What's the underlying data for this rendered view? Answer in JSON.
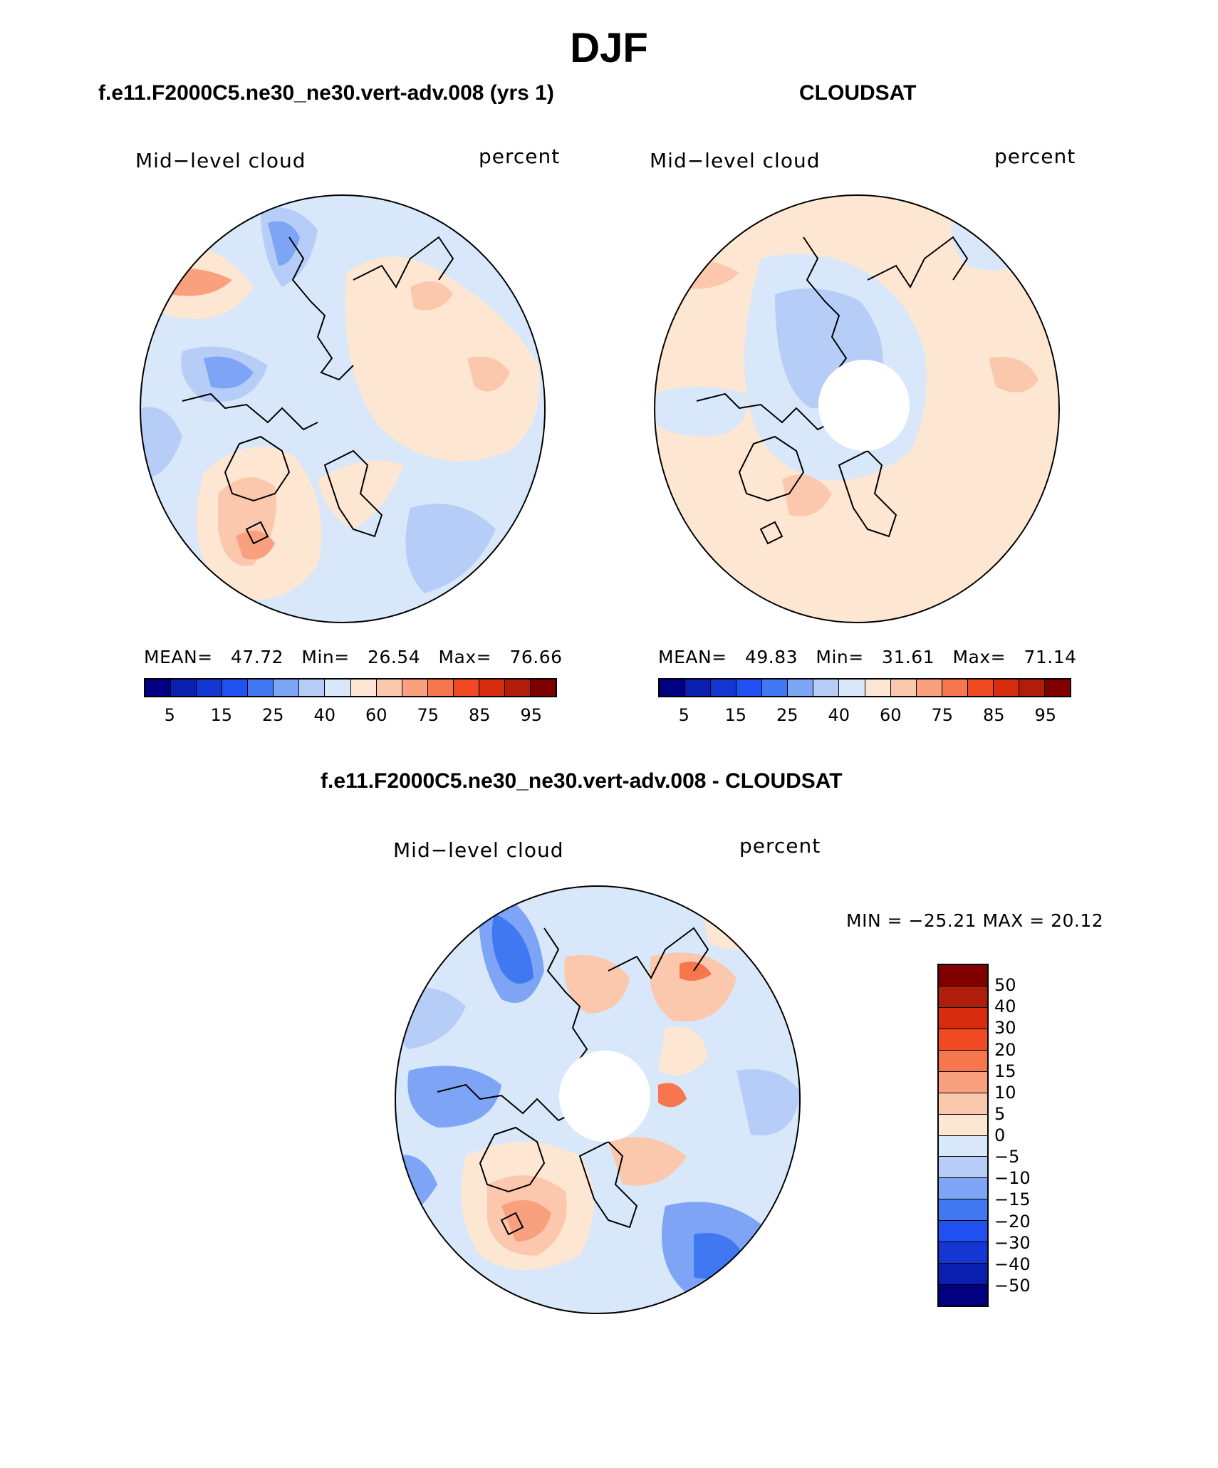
{
  "figure": {
    "title": "DJF"
  },
  "panels": [
    {
      "id": "model",
      "title": "f.e11.F2000C5.ne30_ne30.vert-adv.008 (yrs 1)",
      "left_label": "Mid−level cloud",
      "right_label": "percent",
      "stats": {
        "mean_label": "MEAN=",
        "mean": "47.72",
        "min_label": "Min=",
        "min": "26.54",
        "max_label": "Max=",
        "max": "76.66"
      },
      "has_polar_hole": false
    },
    {
      "id": "obs",
      "title": "CLOUDSAT",
      "left_label": "Mid−level cloud",
      "right_label": "percent",
      "stats": {
        "mean_label": "MEAN=",
        "mean": "49.83",
        "min_label": "Min=",
        "min": "31.61",
        "max_label": "Max=",
        "max": "71.14"
      },
      "has_polar_hole": true
    },
    {
      "id": "diff",
      "title": "f.e11.F2000C5.ne30_ne30.vert-adv.008 - CLOUDSAT",
      "left_label": "Mid−level cloud",
      "right_label": "percent",
      "minmax_text": "MIN = −25.21 MAX =  20.12",
      "has_polar_hole": true
    }
  ],
  "colorbars": {
    "abs": {
      "colors": [
        "#000080",
        "#0a1eb0",
        "#1437d2",
        "#2050f0",
        "#3f78f0",
        "#7ea5f5",
        "#b6cdf8",
        "#d8e8fa",
        "#fde6d2",
        "#fcc8ad",
        "#f9a07e",
        "#f6764d",
        "#f04a22",
        "#d82c0e",
        "#b01d08",
        "#800000"
      ],
      "tick_labels": [
        "5",
        "15",
        "25",
        "40",
        "60",
        "75",
        "85",
        "95"
      ]
    },
    "diff": {
      "colors_top_to_bottom": [
        "#800000",
        "#b01d08",
        "#d82c0e",
        "#f04a22",
        "#f6764d",
        "#f9a07e",
        "#fcc8ad",
        "#fde6d2",
        "#d8e8fa",
        "#b6cdf8",
        "#7ea5f5",
        "#3f78f0",
        "#2050f0",
        "#1437d2",
        "#0a1eb0",
        "#000080"
      ],
      "tick_labels": [
        "50",
        "40",
        "30",
        "20",
        "15",
        "10",
        "5",
        "0",
        "−5",
        "−10",
        "−15",
        "−20",
        "−30",
        "−40",
        "−50"
      ]
    }
  },
  "map_colors": {
    "light_blue": "#d8e8fa",
    "mid_blue": "#b6cdf8",
    "blue": "#7ea5f5",
    "deep_blue": "#3f78f0",
    "light_orange": "#fde6d2",
    "orange": "#fcc8ad",
    "deep_orange": "#f9a07e",
    "red": "#f6764d"
  }
}
